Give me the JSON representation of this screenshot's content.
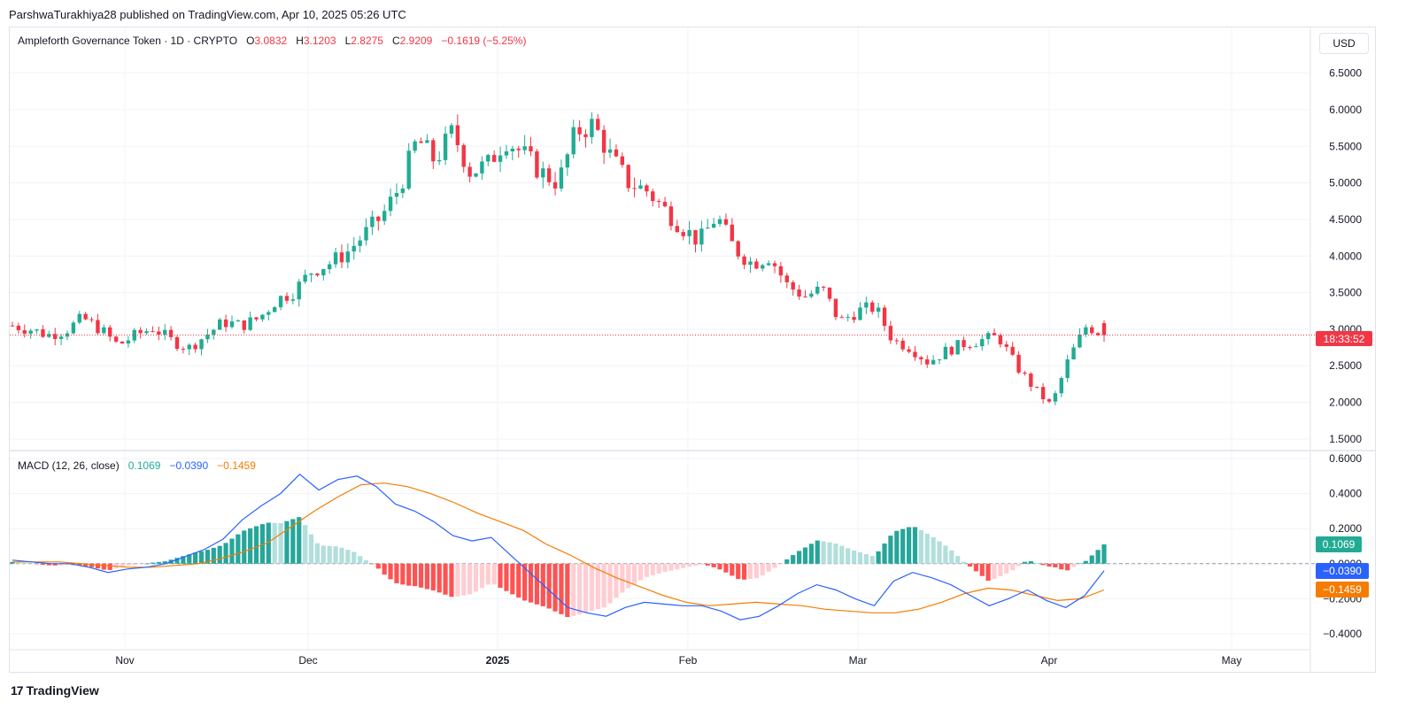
{
  "header": {
    "published": "ParshwaTurakhiya28 published on TradingView.com, Apr 10, 2025 05:26 UTC"
  },
  "legend": {
    "title": "Ampleforth Governance Token · 1D · CRYPTO",
    "o_label": "O",
    "o": "3.0832",
    "h_label": "H",
    "h": "3.1203",
    "l_label": "L",
    "l": "2.8275",
    "c_label": "C",
    "c": "2.9209",
    "change": "−0.1619 (−5.25%)"
  },
  "macd_legend": {
    "title": "MACD (12, 26, close)",
    "hist": "0.1069",
    "macd": "−0.0390",
    "signal": "−0.1459"
  },
  "currency_button": "USD",
  "price_badge": "18:33:52",
  "macd_badges": {
    "hist": "0.1069",
    "macd": "−0.0390",
    "signal": "−0.1459"
  },
  "colors": {
    "up": "#22ab94",
    "down": "#f23645",
    "macd": "#2962ff",
    "signal": "#f57c00",
    "hist_up_strong": "#26a69a",
    "hist_up_weak": "#b2dfdb",
    "hist_down_strong": "#ff5252",
    "hist_down_weak": "#ffcdd2"
  },
  "footer": {
    "brand": "TradingView"
  },
  "chart_data": [
    {
      "type": "candlestick",
      "x_ticks": [
        "Nov",
        "Dec",
        "2025",
        "Feb",
        "Mar",
        "Apr",
        "May"
      ],
      "y_ticks": [
        "6.5000",
        "6.0000",
        "5.5000",
        "5.0000",
        "4.5000",
        "4.0000",
        "3.5000",
        "3.0000",
        "2.5000",
        "2.0000",
        "1.5000"
      ],
      "ylim": [
        1.45,
        6.75
      ],
      "last_price": 2.9209,
      "x": [
        "Oct 14",
        "Oct 17",
        "Oct 20",
        "Oct 23",
        "Oct 26",
        "Oct 29",
        "Nov 1",
        "Nov 4",
        "Nov 7",
        "Nov 10",
        "Nov 13",
        "Nov 16",
        "Nov 19",
        "Nov 22",
        "Nov 25",
        "Nov 28",
        "Dec 1",
        "Dec 4",
        "Dec 7",
        "Dec 10",
        "Dec 13",
        "Dec 16",
        "Dec 19",
        "Dec 22",
        "Dec 25",
        "Dec 28",
        "Dec 31",
        "Jan 3",
        "Jan 6",
        "Jan 9",
        "Jan 12",
        "Jan 15",
        "Jan 18",
        "Jan 21",
        "Jan 24",
        "Jan 27",
        "Jan 30",
        "Feb 2",
        "Feb 5",
        "Feb 8",
        "Feb 11",
        "Feb 14",
        "Feb 17",
        "Feb 20",
        "Feb 23",
        "Feb 26",
        "Mar 1",
        "Mar 4",
        "Mar 7",
        "Mar 10",
        "Mar 13",
        "Mar 16",
        "Mar 19",
        "Mar 22",
        "Mar 25",
        "Mar 28",
        "Mar 31",
        "Apr 3",
        "Apr 5",
        "Apr 7",
        "Apr 8",
        "Apr 9",
        "Apr 10"
      ],
      "close": [
        3.05,
        3.0,
        2.92,
        2.98,
        3.15,
        3.0,
        2.78,
        2.92,
        3.02,
        2.85,
        2.74,
        2.92,
        3.1,
        3.05,
        3.15,
        3.4,
        3.52,
        3.8,
        3.9,
        4.05,
        4.3,
        4.55,
        4.95,
        5.6,
        5.3,
        5.7,
        5.15,
        5.25,
        5.6,
        5.4,
        5.15,
        5.0,
        5.7,
        5.8,
        5.35,
        5.0,
        4.9,
        4.65,
        4.4,
        4.2,
        4.55,
        4.1,
        3.9,
        4.0,
        3.6,
        3.45,
        3.55,
        3.1,
        3.25,
        3.3,
        2.85,
        2.75,
        2.55,
        2.7,
        2.8,
        2.85,
        2.9,
        2.5,
        2.2,
        1.95,
        2.6,
        3.05,
        2.92
      ],
      "ohlc_note": "daily candles; high/low estimated from wicks"
    },
    {
      "type": "macd",
      "series": [
        {
          "name": "MACD",
          "values": [
            0.02,
            0.01,
            0.0,
            0.0,
            -0.02,
            -0.05,
            -0.03,
            -0.02,
            0.0,
            0.04,
            0.08,
            0.14,
            0.25,
            0.33,
            0.4,
            0.51,
            0.42,
            0.48,
            0.5,
            0.44,
            0.34,
            0.3,
            0.24,
            0.16,
            0.13,
            0.15,
            0.05,
            -0.05,
            -0.15,
            -0.25,
            -0.28,
            -0.3,
            -0.25,
            -0.22,
            -0.23,
            -0.24,
            -0.24,
            -0.27,
            -0.32,
            -0.3,
            -0.24,
            -0.17,
            -0.12,
            -0.15,
            -0.2,
            -0.24,
            -0.1,
            -0.05,
            -0.08,
            -0.12,
            -0.18,
            -0.24,
            -0.2,
            -0.15,
            -0.21,
            -0.25,
            -0.18,
            -0.04
          ]
        },
        {
          "name": "Signal",
          "values": [
            0.01,
            0.01,
            0.01,
            0.0,
            -0.01,
            -0.02,
            -0.02,
            -0.01,
            0.0,
            0.03,
            0.07,
            0.12,
            0.21,
            0.3,
            0.38,
            0.45,
            0.46,
            0.44,
            0.4,
            0.35,
            0.29,
            0.24,
            0.19,
            0.11,
            0.05,
            -0.02,
            -0.08,
            -0.13,
            -0.18,
            -0.22,
            -0.24,
            -0.23,
            -0.22,
            -0.23,
            -0.24,
            -0.26,
            -0.27,
            -0.28,
            -0.28,
            -0.26,
            -0.22,
            -0.17,
            -0.14,
            -0.15,
            -0.18,
            -0.21,
            -0.2,
            -0.15
          ]
        }
      ],
      "y_ticks": [
        "0.6000",
        "0.4000",
        "0.2000",
        "0.0000",
        "-0.2000",
        "-0.4000"
      ],
      "ylim": [
        -0.42,
        0.62
      ]
    }
  ]
}
